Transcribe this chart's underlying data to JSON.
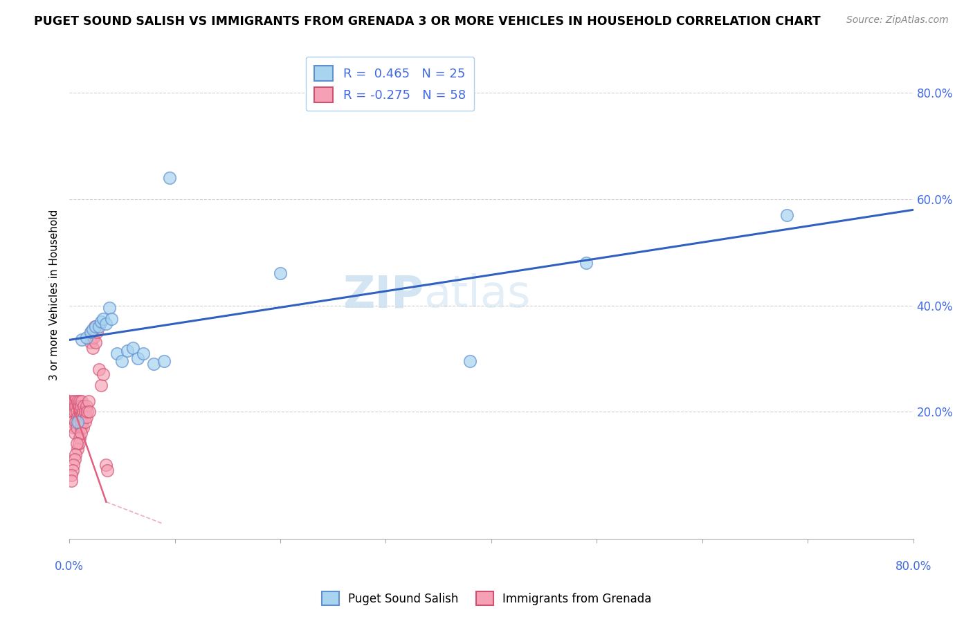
{
  "title": "PUGET SOUND SALISH VS IMMIGRANTS FROM GRENADA 3 OR MORE VEHICLES IN HOUSEHOLD CORRELATION CHART",
  "source": "Source: ZipAtlas.com",
  "ylabel": "3 or more Vehicles in Household",
  "ytick_labels": [
    "20.0%",
    "40.0%",
    "60.0%",
    "80.0%"
  ],
  "ytick_values": [
    0.2,
    0.4,
    0.6,
    0.8
  ],
  "xmin": 0.0,
  "xmax": 0.8,
  "ymin": -0.04,
  "ymax": 0.88,
  "legend1_label": "Puget Sound Salish",
  "legend2_label": "Immigrants from Grenada",
  "r1": "0.465",
  "n1": "25",
  "r2": "-0.275",
  "n2": "58",
  "color_blue": "#a8d4f0",
  "color_pink": "#f5a0b5",
  "color_blue_line": "#3060c0",
  "color_pink_line": "#e06080",
  "color_blue_edge": "#6090d0",
  "color_pink_edge": "#d05070",
  "color_text_blue": "#4169E1",
  "watermark_zip": "ZIP",
  "watermark_atlas": "atlas",
  "blue_scatter_x": [
    0.008,
    0.012,
    0.016,
    0.02,
    0.022,
    0.025,
    0.028,
    0.03,
    0.032,
    0.035,
    0.038,
    0.04,
    0.045,
    0.05,
    0.055,
    0.06,
    0.065,
    0.07,
    0.08,
    0.09,
    0.095,
    0.2,
    0.38,
    0.49,
    0.68
  ],
  "blue_scatter_y": [
    0.18,
    0.335,
    0.34,
    0.35,
    0.355,
    0.36,
    0.36,
    0.37,
    0.375,
    0.365,
    0.395,
    0.375,
    0.31,
    0.295,
    0.315,
    0.32,
    0.3,
    0.31,
    0.29,
    0.295,
    0.64,
    0.46,
    0.295,
    0.48,
    0.57
  ],
  "pink_scatter_x": [
    0.002,
    0.003,
    0.003,
    0.004,
    0.004,
    0.005,
    0.005,
    0.005,
    0.006,
    0.006,
    0.007,
    0.007,
    0.008,
    0.008,
    0.009,
    0.009,
    0.01,
    0.01,
    0.01,
    0.011,
    0.011,
    0.011,
    0.012,
    0.012,
    0.013,
    0.013,
    0.014,
    0.014,
    0.015,
    0.015,
    0.016,
    0.016,
    0.017,
    0.018,
    0.019,
    0.02,
    0.021,
    0.022,
    0.023,
    0.024,
    0.025,
    0.026,
    0.028,
    0.03,
    0.032,
    0.035,
    0.036,
    0.01,
    0.008,
    0.009,
    0.011,
    0.007,
    0.006,
    0.005,
    0.004,
    0.003,
    0.002,
    0.002
  ],
  "pink_scatter_y": [
    0.22,
    0.2,
    0.18,
    0.21,
    0.17,
    0.22,
    0.2,
    0.16,
    0.21,
    0.18,
    0.2,
    0.17,
    0.22,
    0.19,
    0.21,
    0.18,
    0.22,
    0.2,
    0.19,
    0.21,
    0.19,
    0.17,
    0.22,
    0.18,
    0.2,
    0.17,
    0.21,
    0.19,
    0.2,
    0.18,
    0.21,
    0.19,
    0.2,
    0.22,
    0.2,
    0.33,
    0.35,
    0.32,
    0.34,
    0.36,
    0.33,
    0.35,
    0.28,
    0.25,
    0.27,
    0.1,
    0.09,
    0.15,
    0.13,
    0.14,
    0.16,
    0.14,
    0.12,
    0.11,
    0.1,
    0.09,
    0.08,
    0.07
  ],
  "blue_line_x0": 0.0,
  "blue_line_x1": 0.8,
  "blue_line_y0": 0.335,
  "blue_line_y1": 0.58,
  "pink_line_x0": 0.0,
  "pink_line_x1": 0.035,
  "pink_line_y0": 0.23,
  "pink_line_y1": 0.03
}
